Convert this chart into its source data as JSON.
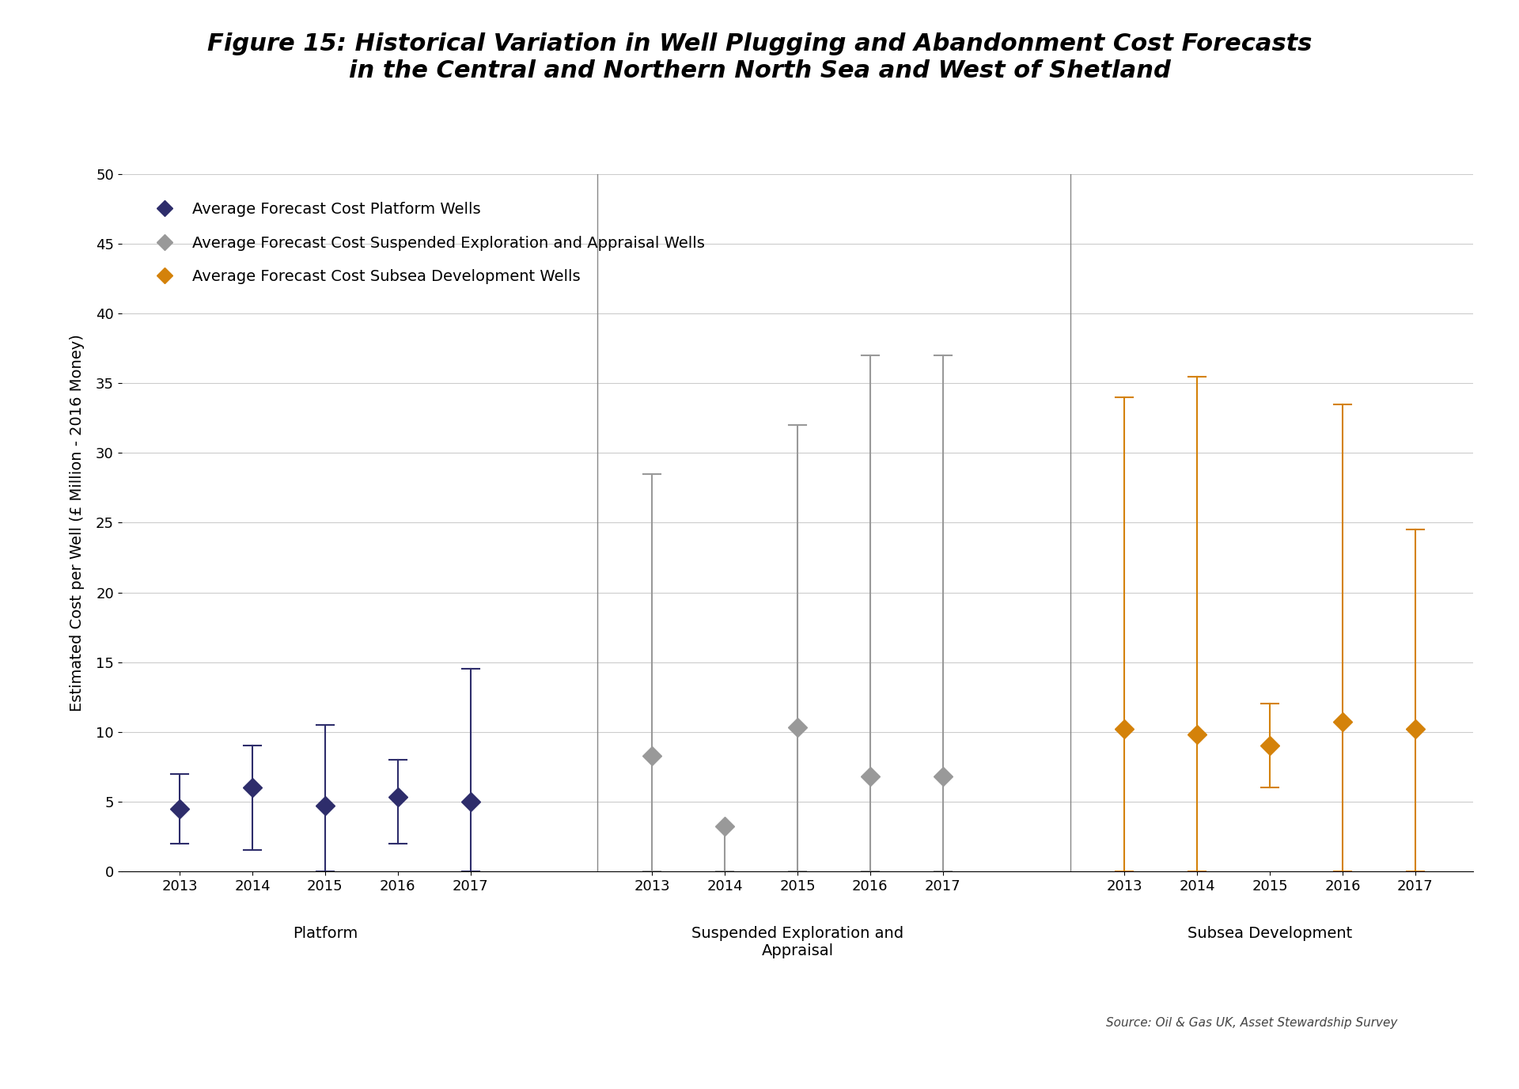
{
  "title_line1": "Figure 15: Historical Variation in Well Plugging and Abandonment Cost Forecasts",
  "title_line2": "in the Central and Northern North Sea and West of Shetland",
  "ylabel": "Estimated Cost per Well (£ Million - 2016 Money)",
  "source": "Source: Oil & Gas UK, Asset Stewardship Survey",
  "ylim": [
    0,
    50
  ],
  "yticks": [
    0,
    5,
    10,
    15,
    20,
    25,
    30,
    35,
    40,
    45,
    50
  ],
  "group_labels": [
    "Platform",
    "Suspended Exploration and\nAppraisal",
    "Subsea Development"
  ],
  "years": [
    "2013",
    "2014",
    "2015",
    "2016",
    "2017"
  ],
  "platform": {
    "means": [
      4.5,
      6.0,
      4.7,
      5.3,
      5.0
    ],
    "lower_bounds": [
      2.0,
      1.5,
      0.0,
      2.0,
      0.0
    ],
    "upper_bounds": [
      7.0,
      9.0,
      10.5,
      8.0,
      14.5
    ],
    "color": "#2E2D6B",
    "marker": "D",
    "label": "Average Forecast Cost Platform Wells"
  },
  "suspended": {
    "means": [
      8.3,
      3.2,
      10.3,
      6.8,
      6.8
    ],
    "lower_bounds": [
      0.0,
      0.0,
      0.0,
      0.0,
      0.0
    ],
    "upper_bounds": [
      28.5,
      0.0,
      32.0,
      37.0,
      37.0
    ],
    "color": "#999999",
    "marker": "D",
    "label": "Average Forecast Cost Suspended Exploration and Appraisal Wells"
  },
  "subsea": {
    "means": [
      10.2,
      9.8,
      9.0,
      10.7,
      10.2
    ],
    "lower_bounds": [
      0.0,
      0.0,
      6.0,
      0.0,
      0.0
    ],
    "upper_bounds": [
      34.0,
      35.5,
      12.0,
      33.5,
      24.5
    ],
    "color": "#D4820A",
    "marker": "D",
    "label": "Average Forecast Cost Subsea Development Wells"
  },
  "background_color": "#FFFFFF",
  "grid_color": "#CCCCCC",
  "title_fontsize": 22,
  "axis_label_fontsize": 14,
  "tick_fontsize": 13,
  "legend_fontsize": 14,
  "source_fontsize": 11
}
